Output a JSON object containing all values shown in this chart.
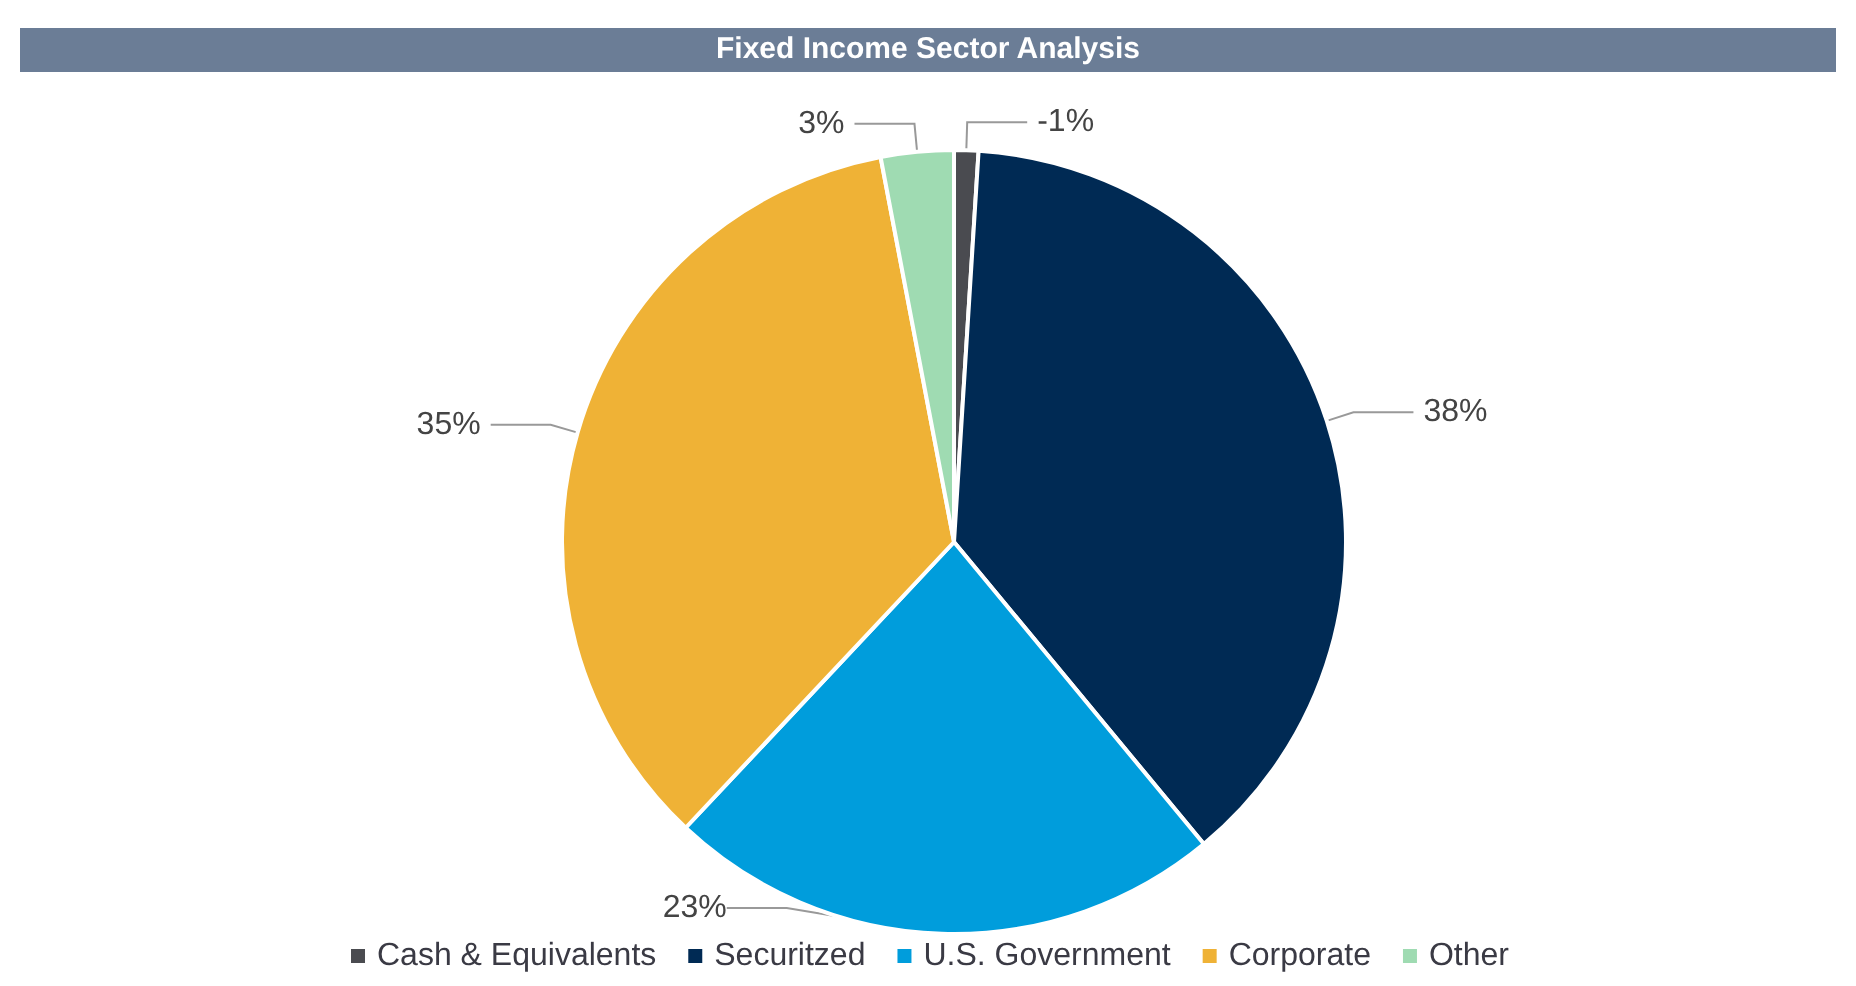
{
  "chart_data": {
    "type": "pie",
    "title": "Fixed Income Sector Analysis",
    "categories": [
      "Cash & Equivalents",
      "Securitzed",
      "U.S. Government",
      "Corporate",
      "Other"
    ],
    "values": [
      1,
      38,
      23,
      35,
      3
    ],
    "value_labels": [
      null,
      "38%",
      "23%",
      "35%",
      "3%"
    ],
    "annotations": [
      {
        "text": "-1%",
        "x": "Cash & Equivalents"
      }
    ],
    "colors": [
      "#4a4b50",
      "#002a54",
      "#009ddc",
      "#efb236",
      "#9fdbb2"
    ],
    "legend": "bottom"
  }
}
